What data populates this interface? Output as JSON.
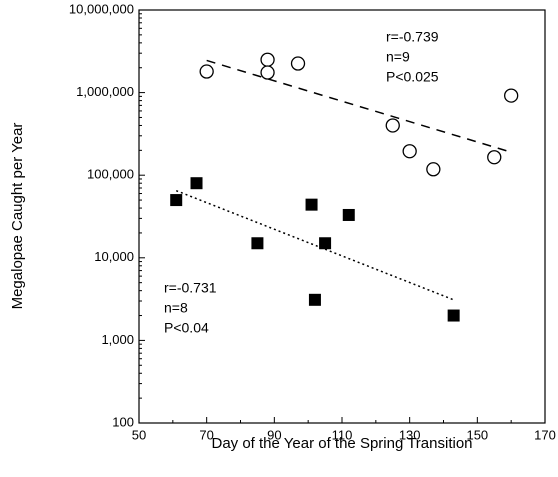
{
  "chart_data": {
    "type": "scatter",
    "xlabel": "Day of the Year of the Spring Transition",
    "ylabel": "Megalopae Caught per Year",
    "xlim": [
      50,
      170
    ],
    "ylim": [
      100,
      10000000
    ],
    "yscale": "log",
    "grid": false,
    "x_ticks": [
      50,
      70,
      90,
      110,
      130,
      150,
      170
    ],
    "x_tick_labels": [
      "50",
      "70",
      "90",
      "110",
      "130",
      "150",
      "170"
    ],
    "y_ticks": [
      100,
      1000,
      10000,
      100000,
      1000000,
      10000000
    ],
    "y_tick_labels": [
      "100",
      "1,000",
      "10,000",
      "100,000",
      "1,000,000",
      "10,000,000"
    ],
    "series": [
      {
        "marker": "open-circle",
        "color": "#000000",
        "points": [
          {
            "x": 70,
            "y": 1800000
          },
          {
            "x": 88,
            "y": 2500000
          },
          {
            "x": 88,
            "y": 1750000
          },
          {
            "x": 97,
            "y": 2250000
          },
          {
            "x": 125,
            "y": 400000
          },
          {
            "x": 130,
            "y": 195000
          },
          {
            "x": 137,
            "y": 118000
          },
          {
            "x": 155,
            "y": 165000
          },
          {
            "x": 160,
            "y": 920000
          }
        ],
        "trendline": {
          "style": "dashed",
          "x": [
            70,
            160
          ],
          "y": [
            2450000,
            190000
          ]
        },
        "stats": [
          "r=-0.739",
          "n=9",
          "P<0.025"
        ]
      },
      {
        "marker": "filled-square",
        "color": "#000000",
        "points": [
          {
            "x": 61,
            "y": 50000
          },
          {
            "x": 67,
            "y": 80000
          },
          {
            "x": 85,
            "y": 15000
          },
          {
            "x": 101,
            "y": 44000
          },
          {
            "x": 102,
            "y": 3100
          },
          {
            "x": 105,
            "y": 15000
          },
          {
            "x": 112,
            "y": 33000
          },
          {
            "x": 143,
            "y": 2000
          }
        ],
        "trendline": {
          "style": "dotted",
          "x": [
            61,
            143
          ],
          "y": [
            65000,
            3100
          ]
        },
        "stats": [
          "r=-0.731",
          "n=8",
          "P<0.04"
        ]
      }
    ]
  }
}
